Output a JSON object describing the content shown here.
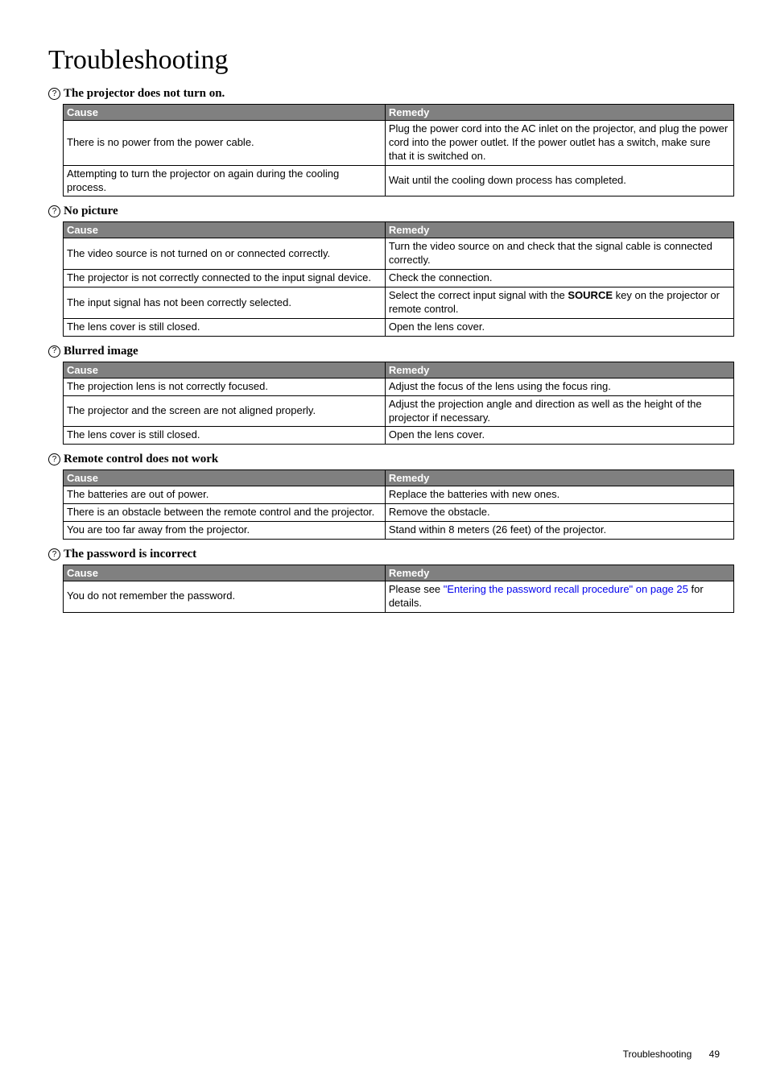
{
  "page_title": "Troubleshooting",
  "footer_label": "Troubleshooting",
  "footer_page": "49",
  "table_headers": {
    "cause": "Cause",
    "remedy": "Remedy"
  },
  "sections": [
    {
      "heading": "The projector does not turn on.",
      "rows": [
        {
          "cause": "There is no power from the power cable.",
          "remedy": "Plug the power cord into the AC inlet on the projector, and plug the power cord into the power outlet. If the power outlet has a switch, make sure that it is switched on."
        },
        {
          "cause": "Attempting to turn the projector on again during the cooling process.",
          "remedy": "Wait until the cooling down process has completed."
        }
      ]
    },
    {
      "heading": "No picture",
      "rows": [
        {
          "cause": "The video source is not turned on or connected correctly.",
          "remedy": "Turn the video source on and check that the signal cable is connected correctly."
        },
        {
          "cause": "The projector is not correctly connected to the input signal device.",
          "remedy": "Check the connection."
        },
        {
          "cause": "The input signal has not been correctly selected.",
          "remedy_html": "Select the correct input signal with the <b>SOURCE</b> key on the projector or remote control."
        },
        {
          "cause": "The lens cover is still closed.",
          "remedy": "Open the lens cover."
        }
      ]
    },
    {
      "heading": "Blurred image",
      "rows": [
        {
          "cause": "The projection lens is not correctly focused.",
          "remedy": "Adjust the focus of the lens using the focus ring."
        },
        {
          "cause": "The projector and the screen are not aligned properly.",
          "remedy": "Adjust the projection angle and direction as well as the height of the projector if necessary."
        },
        {
          "cause": "The lens cover is still closed.",
          "remedy": "Open the lens cover."
        }
      ]
    },
    {
      "heading": "Remote control does not work",
      "rows": [
        {
          "cause": "The batteries are out of power.",
          "remedy": "Replace the batteries with new ones."
        },
        {
          "cause": "There is an obstacle between the remote control and the projector.",
          "remedy": "Remove the obstacle."
        },
        {
          "cause": "You are too far away from the projector.",
          "remedy": "Stand within 8 meters (26 feet) of the projector."
        }
      ]
    },
    {
      "heading": "The password is incorrect",
      "rows": [
        {
          "cause": "You do not remember the password.",
          "remedy_html": "Please see <a href=\"#\">\"Entering the password recall procedure\" on page 25</a> for details."
        }
      ]
    }
  ]
}
